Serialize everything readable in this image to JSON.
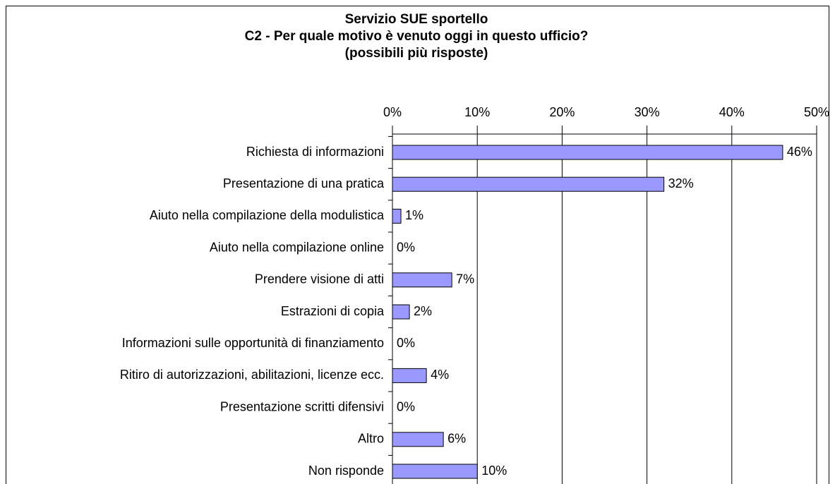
{
  "chart_data": {
    "type": "bar",
    "orientation": "horizontal",
    "title": [
      "Servizio SUE sportello",
      "C2 - Per quale motivo è venuto oggi in questo ufficio?",
      "(possibili più risposte)"
    ],
    "categories": [
      "Richiesta di informazioni",
      "Presentazione di una pratica",
      "Aiuto nella compilazione della modulistica",
      "Aiuto nella compilazione online",
      "Prendere visione di atti",
      "Estrazioni di copia",
      "Informazioni sulle opportunità di finanziamento",
      "Ritiro di autorizzazioni, abilitazioni, licenze ecc.",
      "Presentazione scritti difensivi",
      "Altro",
      "Non risponde"
    ],
    "values": [
      46,
      32,
      1,
      0,
      7,
      2,
      0,
      4,
      0,
      6,
      10
    ],
    "value_labels": [
      "46%",
      "32%",
      "1%",
      "0%",
      "7%",
      "2%",
      "0%",
      "4%",
      "0%",
      "6%",
      "10%"
    ],
    "color": "#9999ff",
    "xlim": [
      0,
      50
    ],
    "xticks": [
      {
        "value": 0,
        "label": "0%"
      },
      {
        "value": 10,
        "label": "10%"
      },
      {
        "value": 20,
        "label": "20%"
      },
      {
        "value": 30,
        "label": "30%"
      },
      {
        "value": 40,
        "label": "40%"
      },
      {
        "value": 50,
        "label": "50%"
      }
    ],
    "grid": true
  }
}
